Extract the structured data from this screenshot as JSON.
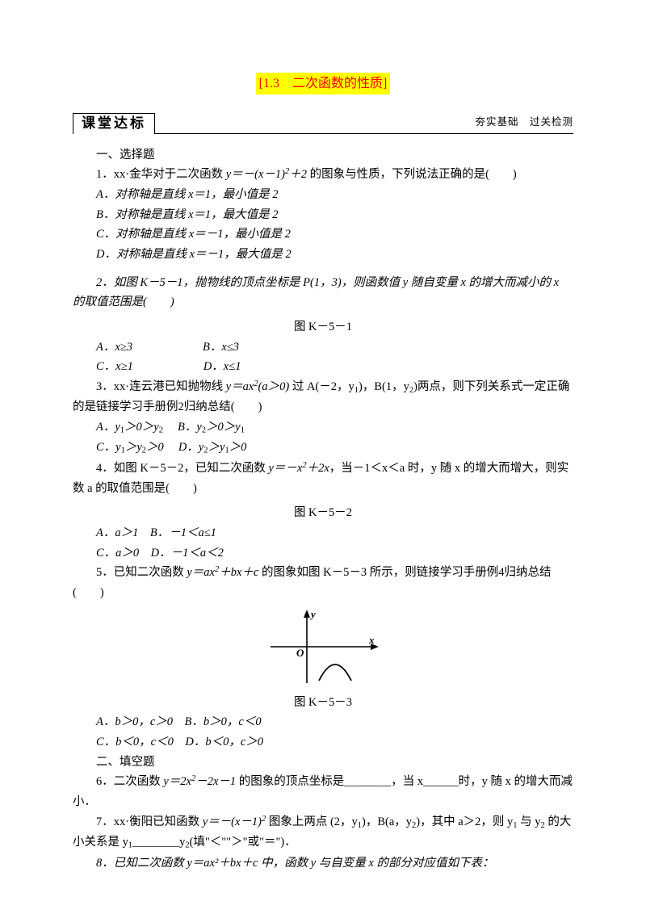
{
  "title": "[1.3　二次函数的性质]",
  "badge": "课堂达标",
  "subtitle": "夯实基础　过关检测",
  "section1_heading": "一、选择题",
  "q1": {
    "stem_pre": "1．xx·金华对于二次函数 ",
    "stem_post": " 的图象与性质，下列说法正确的是(　　)",
    "optA": "A．对称轴是直线 x＝1，最小值是 2",
    "optB": "B．对称轴是直线 x＝1，最大值是 2",
    "optC": "C．对称轴是直线 x＝－1，最小值是 2",
    "optD": "D．对称轴是直线 x＝－1，最大值是 2"
  },
  "q2": {
    "stem": "2．如图 K－5－1，抛物线的顶点坐标是 P(1，3)，则函数值 y 随自变量 x 的增大而减小的 x 的取值范围是(　　)",
    "fig": "图 K－5－1",
    "optA": "A．x≥3",
    "optB": "B．x≤3",
    "optC": "C．x≥1",
    "optD": "D．x≤1"
  },
  "q3": {
    "stem_pre": "3．xx·连云港已知抛物线 ",
    "stem_mid": " 过 A(－2，y",
    "stem_mid2": ")，B(1，y",
    "stem_post": ")两点，则下列关系式一定正确的是链接学习手册例2归纳总结(　　)",
    "optA_pre": "A．y",
    "optA_post": "＞0＞y",
    "optB_pre": "B．y",
    "optB_post": "＞0＞y",
    "optC_pre": "C．y",
    "optC_mid": "＞y",
    "optC_post": "＞0",
    "optD_pre": "D．y",
    "optD_mid": "＞y",
    "optD_post": "＞0"
  },
  "q4": {
    "stem_pre": "4．如图 K－5－2，已知二次函数 ",
    "stem_post": "，当－1＜x＜a 时，y 随 x 的增大而增大，则实数 a 的取值范围是(　　)",
    "fig": "图 K－5－2",
    "optA": "A．a＞1",
    "optB": "B．－1＜a≤1",
    "optC": "C．a＞0",
    "optD": "D．－1＜a＜2"
  },
  "q5": {
    "stem_pre": "5．已知二次函数 ",
    "stem_post": " 的图象如图 K－5－3 所示，则链接学习手册例4归纳总结(　　)",
    "fig": "图 K－5－3",
    "optA": "A．b＞0，c＞0",
    "optB": "B．b＞0，c＜0",
    "optC": "C．b＜0，c＜0",
    "optD": "D．b＜0，c＞0",
    "axis_x": "x",
    "axis_y": "y",
    "origin": "O"
  },
  "section2_heading": "二、填空题",
  "q6": {
    "pre": "6．二次函数 ",
    "post": " 的图象的顶点坐标是________，当 x______时，y 随 x 的增大而减小．"
  },
  "q7": {
    "pre": "7．xx·衡阳已知函数 ",
    "mid": " 图象上两点 (2，y",
    "mid2": ")，B(a，y",
    "mid3": ")，其中 a＞2，则 y",
    "mid4": " 与 y",
    "mid5": " 的大小关系是 y",
    "mid6": "________y",
    "post": "(填\"＜\"\"＞\"或\"＝\")．"
  },
  "q8": "8．已知二次函数 y＝ax²＋bx＋c 中，函数 y 与自变量 x 的部分对应值如下表：",
  "colors": {
    "title_bg": "#ffff00",
    "title_fg": "#ff0000",
    "text": "#000000",
    "bg": "#ffffff"
  },
  "figure": {
    "type": "parabola",
    "stroke": "#000000",
    "stroke_width": 1.6,
    "width": 150,
    "height": 110
  }
}
